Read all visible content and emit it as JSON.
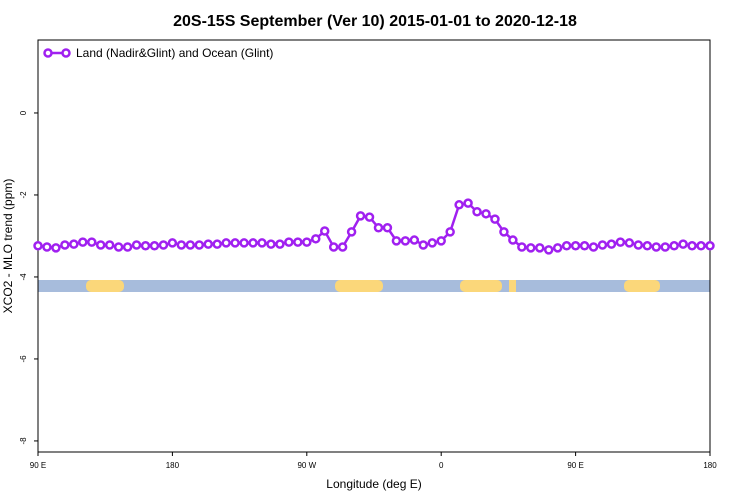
{
  "chart_data": {
    "type": "line",
    "title": "20S-15S September (Ver 10)   2015-01-01 to 2020-12-18",
    "xlabel": "Longitude (deg E)",
    "ylabel": "XCO2 - MLO trend (ppm)",
    "x": [
      90,
      96,
      102,
      108,
      114,
      120,
      126,
      132,
      138,
      144,
      150,
      156,
      162,
      168,
      174,
      180,
      186,
      192,
      198,
      204,
      210,
      216,
      222,
      228,
      234,
      240,
      246,
      252,
      258,
      264,
      270,
      276,
      282,
      288,
      294,
      300,
      306,
      312,
      318,
      324,
      330,
      336,
      342,
      348,
      354,
      360,
      366,
      372,
      378,
      384,
      390,
      396,
      402,
      408,
      414,
      420,
      426,
      432,
      438,
      444,
      450,
      456,
      462,
      468,
      474,
      480,
      486,
      492,
      498,
      504,
      510,
      516,
      522,
      528,
      534,
      540
    ],
    "series": [
      {
        "name": "Land (Nadir&Glint) and Ocean (Glint)",
        "color": "#a020f0",
        "values": [
          -3.24,
          -3.27,
          -3.29,
          -3.22,
          -3.2,
          -3.15,
          -3.15,
          -3.22,
          -3.22,
          -3.27,
          -3.27,
          -3.22,
          -3.24,
          -3.24,
          -3.22,
          -3.17,
          -3.22,
          -3.22,
          -3.22,
          -3.2,
          -3.2,
          -3.17,
          -3.17,
          -3.17,
          -3.17,
          -3.17,
          -3.2,
          -3.2,
          -3.15,
          -3.15,
          -3.15,
          -3.07,
          -2.88,
          -3.27,
          -3.27,
          -2.9,
          -2.51,
          -2.54,
          -2.8,
          -2.8,
          -3.12,
          -3.12,
          -3.1,
          -3.22,
          -3.17,
          -3.12,
          -2.9,
          -2.24,
          -2.2,
          -2.41,
          -2.46,
          -2.59,
          -2.9,
          -3.1,
          -3.27,
          -3.29,
          -3.29,
          -3.34,
          -3.29,
          -3.24,
          -3.24,
          -3.24,
          -3.27,
          -3.22,
          -3.2,
          -3.15,
          -3.17,
          -3.22,
          -3.24,
          -3.27,
          -3.27,
          -3.24,
          -3.2,
          -3.24,
          -3.24,
          -3.24
        ]
      }
    ],
    "xlim": [
      90,
      540
    ],
    "xticks": [
      {
        "value": 90,
        "label": "90 E"
      },
      180,
      {
        "value": 270,
        "label": "90 W"
      },
      {
        "value": 360,
        "label": "0"
      },
      {
        "value": 450,
        "label": "90 E"
      },
      {
        "value": 540,
        "label": "180"
      }
    ],
    "ylim": [
      -8.27,
      1.78
    ],
    "yticks": [
      0,
      -2,
      -4,
      -6,
      -8
    ],
    "legend": "top-left"
  }
}
